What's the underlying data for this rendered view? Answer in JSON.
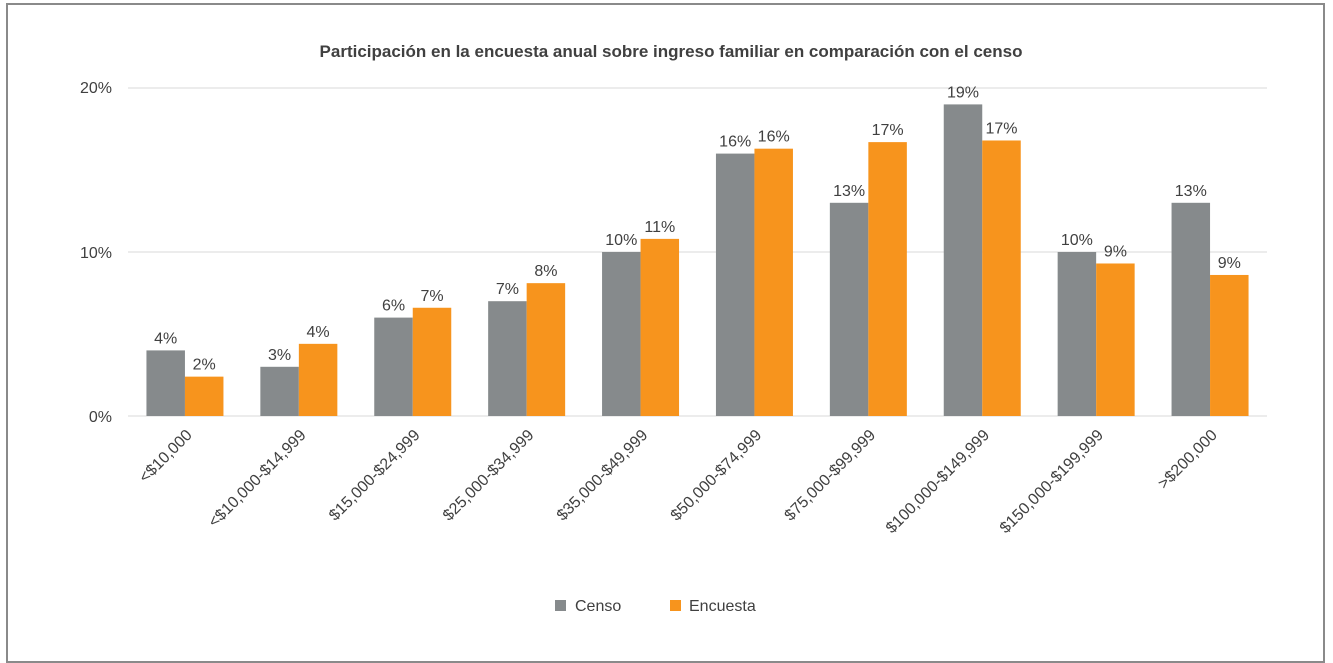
{
  "colors": {
    "censo": "#868a8c",
    "encuesta": "#f7941d",
    "grid": "#d9d9d9",
    "text": "#404040"
  },
  "chart_data": {
    "type": "bar",
    "title": "Participación en la encuesta anual sobre ingreso familiar en comparación con el censo",
    "categories": [
      "<$10,000",
      "<$10,000-$14,999",
      "$15,000-$24,999",
      "$25,000-$34,999",
      "$35,000-$49,999",
      "$50,000-$74,999",
      "$75,000-$99,999",
      "$100,000-$149,999",
      "$150,000-$199,999",
      ">$200,000"
    ],
    "series": [
      {
        "name": "Censo",
        "values": [
          4,
          3,
          6,
          7,
          10,
          16,
          13,
          19,
          10,
          13
        ],
        "labels": [
          "4%",
          "3%",
          "6%",
          "7%",
          "10%",
          "16%",
          "13%",
          "19%",
          "10%",
          "13%"
        ]
      },
      {
        "name": "Encuesta",
        "values": [
          2.4,
          4.4,
          6.6,
          8.1,
          10.8,
          16.3,
          16.7,
          16.8,
          9.3,
          8.6
        ],
        "labels": [
          "2%",
          "4%",
          "7%",
          "8%",
          "11%",
          "16%",
          "17%",
          "17%",
          "9%",
          "9%"
        ]
      }
    ],
    "yticks": [
      "0%",
      "10%",
      "20%"
    ],
    "ylim": [
      0,
      20
    ],
    "grid": true,
    "legend": "bottom"
  }
}
